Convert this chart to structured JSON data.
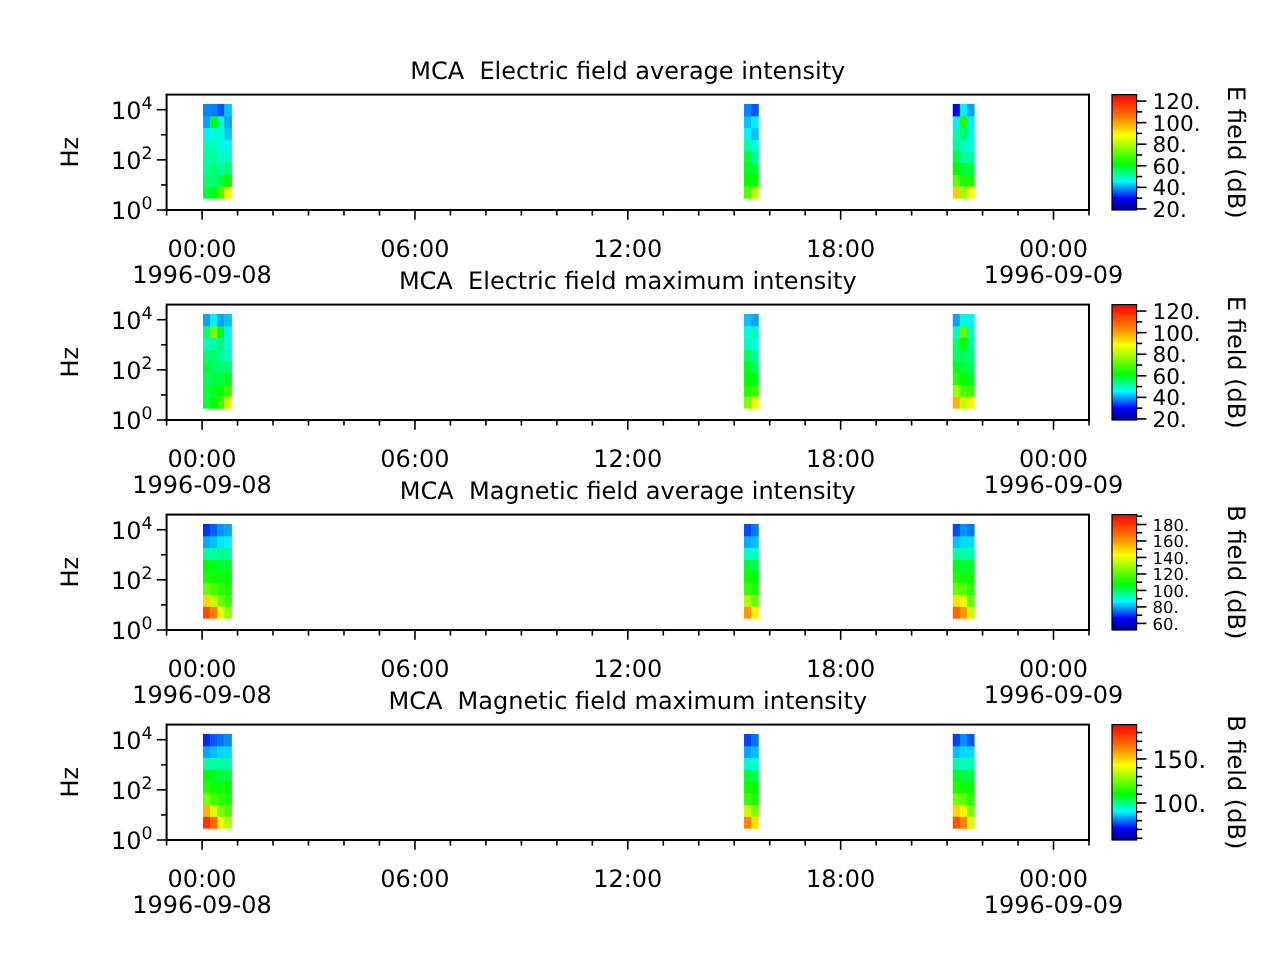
{
  "chart_data": [
    {
      "type": "scatter",
      "title": "MCA  Electric field average intensity",
      "ylabel": "Hz",
      "clabel": "E field (dB)",
      "marker": "square",
      "log": "y",
      "xlim": [
        "1996-09-07T23:00",
        "1996-09-09T01:00"
      ],
      "xticks": [
        {
          "value": "1996-09-07T23:00",
          "label": null
        },
        {
          "value": "1996-09-08T00:00",
          "label": "00:00\n1996-09-08"
        },
        {
          "value": "1996-09-08T01:00",
          "label": null
        },
        {
          "value": "1996-09-08T02:00",
          "label": null
        },
        {
          "value": "1996-09-08T03:00",
          "label": null
        },
        {
          "value": "1996-09-08T04:00",
          "label": null
        },
        {
          "value": "1996-09-08T05:00",
          "label": null
        },
        {
          "value": "1996-09-08T06:00",
          "label": "06:00"
        },
        {
          "value": "1996-09-08T07:00",
          "label": null
        },
        {
          "value": "1996-09-08T08:00",
          "label": null
        },
        {
          "value": "1996-09-08T09:00",
          "label": null
        },
        {
          "value": "1996-09-08T10:00",
          "label": null
        },
        {
          "value": "1996-09-08T11:00",
          "label": null
        },
        {
          "value": "1996-09-08T12:00",
          "label": "12:00"
        },
        {
          "value": "1996-09-08T13:00",
          "label": null
        },
        {
          "value": "1996-09-08T14:00",
          "label": null
        },
        {
          "value": "1996-09-08T15:00",
          "label": null
        },
        {
          "value": "1996-09-08T16:00",
          "label": null
        },
        {
          "value": "1996-09-08T17:00",
          "label": null
        },
        {
          "value": "1996-09-08T18:00",
          "label": "18:00"
        },
        {
          "value": "1996-09-08T19:00",
          "label": null
        },
        {
          "value": "1996-09-08T20:00",
          "label": null
        },
        {
          "value": "1996-09-08T21:00",
          "label": null
        },
        {
          "value": "1996-09-08T22:00",
          "label": null
        },
        {
          "value": "1996-09-08T23:00",
          "label": null
        },
        {
          "value": "1996-09-09T00:00",
          "label": "00:00\n1996-09-09"
        },
        {
          "value": "1996-09-09T01:00",
          "label": null
        }
      ],
      "ylim": [
        1,
        40000
      ],
      "yticks": [
        {
          "value": 1,
          "label": "10$^{0}$"
        },
        {
          "value": 10,
          "label": null
        },
        {
          "value": 100,
          "label": "10$^{2}$"
        },
        {
          "value": 1000,
          "label": null
        },
        {
          "value": 10000,
          "label": "10$^{4}$"
        }
      ],
      "clim": [
        19,
        126
      ],
      "cticks": [
        {
          "value": 20,
          "label": "20."
        },
        {
          "value": 30,
          "label": null
        },
        {
          "value": 40,
          "label": "40."
        },
        {
          "value": 50,
          "label": null
        },
        {
          "value": 60,
          "label": "60."
        },
        {
          "value": 70,
          "label": null
        },
        {
          "value": 80,
          "label": "80."
        },
        {
          "value": 90,
          "label": null
        },
        {
          "value": 100,
          "label": "100."
        },
        {
          "value": 110,
          "label": null
        },
        {
          "value": 120,
          "label": "120."
        }
      ],
      "x": [
        "1996-09-08T00:08",
        "1996-09-08T00:08",
        "1996-09-08T00:08",
        "1996-09-08T00:08",
        "1996-09-08T00:08",
        "1996-09-08T00:08",
        "1996-09-08T00:08",
        "1996-09-08T00:08",
        "1996-09-08T00:20",
        "1996-09-08T00:20",
        "1996-09-08T00:20",
        "1996-09-08T00:20",
        "1996-09-08T00:20",
        "1996-09-08T00:20",
        "1996-09-08T00:20",
        "1996-09-08T00:20",
        "1996-09-08T00:32",
        "1996-09-08T00:32",
        "1996-09-08T00:32",
        "1996-09-08T00:32",
        "1996-09-08T00:32",
        "1996-09-08T00:32",
        "1996-09-08T00:32",
        "1996-09-08T00:32",
        "1996-09-08T00:44",
        "1996-09-08T00:44",
        "1996-09-08T00:44",
        "1996-09-08T00:44",
        "1996-09-08T00:44",
        "1996-09-08T00:44",
        "1996-09-08T00:44",
        "1996-09-08T00:44",
        "1996-09-08T15:23",
        "1996-09-08T15:23",
        "1996-09-08T15:23",
        "1996-09-08T15:23",
        "1996-09-08T15:23",
        "1996-09-08T15:23",
        "1996-09-08T15:23",
        "1996-09-08T15:23",
        "1996-09-08T15:35",
        "1996-09-08T15:35",
        "1996-09-08T15:35",
        "1996-09-08T15:35",
        "1996-09-08T15:35",
        "1996-09-08T15:35",
        "1996-09-08T15:35",
        "1996-09-08T15:35",
        "1996-09-08T21:16",
        "1996-09-08T21:16",
        "1996-09-08T21:16",
        "1996-09-08T21:16",
        "1996-09-08T21:16",
        "1996-09-08T21:16",
        "1996-09-08T21:16",
        "1996-09-08T21:16",
        "1996-09-08T21:28",
        "1996-09-08T21:28",
        "1996-09-08T21:28",
        "1996-09-08T21:28",
        "1996-09-08T21:28",
        "1996-09-08T21:28",
        "1996-09-08T21:28",
        "1996-09-08T21:28",
        "1996-09-08T21:40",
        "1996-09-08T21:40",
        "1996-09-08T21:40",
        "1996-09-08T21:40",
        "1996-09-08T21:40",
        "1996-09-08T21:40",
        "1996-09-08T21:40",
        "1996-09-08T21:40"
      ],
      "values": [
        5,
        15,
        44,
        130,
        380,
        1100,
        3300,
        9600,
        5,
        15,
        44,
        130,
        380,
        1100,
        3300,
        9600,
        5,
        15,
        44,
        130,
        380,
        1100,
        3300,
        9600,
        5,
        15,
        44,
        130,
        380,
        1100,
        3300,
        9600,
        5,
        15,
        44,
        130,
        380,
        1100,
        3300,
        9600,
        5,
        15,
        44,
        130,
        380,
        1100,
        3300,
        9600,
        5,
        15,
        44,
        130,
        380,
        1100,
        3300,
        9600,
        5,
        15,
        44,
        130,
        380,
        1100,
        3300,
        9600,
        5,
        15,
        44,
        130,
        380,
        1100,
        3300,
        9600
      ],
      "cvalues": [
        58,
        55,
        52,
        52,
        50,
        45,
        40,
        38,
        62,
        55,
        55,
        52,
        50,
        48,
        60,
        38,
        70,
        58,
        52,
        50,
        48,
        48,
        50,
        35,
        88,
        62,
        55,
        50,
        45,
        42,
        40,
        42,
        70,
        62,
        60,
        58,
        52,
        45,
        42,
        38,
        82,
        62,
        58,
        52,
        48,
        42,
        45,
        35,
        95,
        72,
        62,
        58,
        52,
        50,
        45,
        30,
        78,
        65,
        58,
        52,
        50,
        55,
        65,
        45,
        88,
        65,
        58,
        52,
        48,
        48,
        45,
        40
      ]
    },
    {
      "type": "scatter",
      "title": "MCA  Electric field maximum intensity",
      "ylabel": "Hz",
      "clabel": "E field (dB)",
      "marker": "square",
      "log": "y",
      "xlim": [
        "1996-09-07T23:00",
        "1996-09-09T01:00"
      ],
      "xticks": [
        {
          "value": "1996-09-07T23:00",
          "label": null
        },
        {
          "value": "1996-09-08T00:00",
          "label": "00:00\n1996-09-08"
        },
        {
          "value": "1996-09-08T01:00",
          "label": null
        },
        {
          "value": "1996-09-08T02:00",
          "label": null
        },
        {
          "value": "1996-09-08T03:00",
          "label": null
        },
        {
          "value": "1996-09-08T04:00",
          "label": null
        },
        {
          "value": "1996-09-08T05:00",
          "label": null
        },
        {
          "value": "1996-09-08T06:00",
          "label": "06:00"
        },
        {
          "value": "1996-09-08T07:00",
          "label": null
        },
        {
          "value": "1996-09-08T08:00",
          "label": null
        },
        {
          "value": "1996-09-08T09:00",
          "label": null
        },
        {
          "value": "1996-09-08T10:00",
          "label": null
        },
        {
          "value": "1996-09-08T11:00",
          "label": null
        },
        {
          "value": "1996-09-08T12:00",
          "label": "12:00"
        },
        {
          "value": "1996-09-08T13:00",
          "label": null
        },
        {
          "value": "1996-09-08T14:00",
          "label": null
        },
        {
          "value": "1996-09-08T15:00",
          "label": null
        },
        {
          "value": "1996-09-08T16:00",
          "label": null
        },
        {
          "value": "1996-09-08T17:00",
          "label": null
        },
        {
          "value": "1996-09-08T18:00",
          "label": "18:00"
        },
        {
          "value": "1996-09-08T19:00",
          "label": null
        },
        {
          "value": "1996-09-08T20:00",
          "label": null
        },
        {
          "value": "1996-09-08T21:00",
          "label": null
        },
        {
          "value": "1996-09-08T22:00",
          "label": null
        },
        {
          "value": "1996-09-08T23:00",
          "label": null
        },
        {
          "value": "1996-09-09T00:00",
          "label": "00:00\n1996-09-09"
        },
        {
          "value": "1996-09-09T01:00",
          "label": null
        }
      ],
      "ylim": [
        1,
        40000
      ],
      "yticks": [
        {
          "value": 1,
          "label": "10$^{0}$"
        },
        {
          "value": 10,
          "label": null
        },
        {
          "value": 100,
          "label": "10$^{2}$"
        },
        {
          "value": 1000,
          "label": null
        },
        {
          "value": 10000,
          "label": "10$^{4}$"
        }
      ],
      "clim": [
        19,
        126
      ],
      "cticks": [
        {
          "value": 20,
          "label": "20."
        },
        {
          "value": 30,
          "label": null
        },
        {
          "value": 40,
          "label": "40."
        },
        {
          "value": 50,
          "label": null
        },
        {
          "value": 60,
          "label": "60."
        },
        {
          "value": 70,
          "label": null
        },
        {
          "value": 80,
          "label": "80."
        },
        {
          "value": 90,
          "label": null
        },
        {
          "value": 100,
          "label": "100."
        },
        {
          "value": 110,
          "label": null
        },
        {
          "value": 120,
          "label": "120."
        }
      ],
      "x": [
        "1996-09-08T00:08",
        "1996-09-08T00:08",
        "1996-09-08T00:08",
        "1996-09-08T00:08",
        "1996-09-08T00:08",
        "1996-09-08T00:08",
        "1996-09-08T00:08",
        "1996-09-08T00:08",
        "1996-09-08T00:20",
        "1996-09-08T00:20",
        "1996-09-08T00:20",
        "1996-09-08T00:20",
        "1996-09-08T00:20",
        "1996-09-08T00:20",
        "1996-09-08T00:20",
        "1996-09-08T00:20",
        "1996-09-08T00:32",
        "1996-09-08T00:32",
        "1996-09-08T00:32",
        "1996-09-08T00:32",
        "1996-09-08T00:32",
        "1996-09-08T00:32",
        "1996-09-08T00:32",
        "1996-09-08T00:32",
        "1996-09-08T00:44",
        "1996-09-08T00:44",
        "1996-09-08T00:44",
        "1996-09-08T00:44",
        "1996-09-08T00:44",
        "1996-09-08T00:44",
        "1996-09-08T00:44",
        "1996-09-08T00:44",
        "1996-09-08T15:23",
        "1996-09-08T15:23",
        "1996-09-08T15:23",
        "1996-09-08T15:23",
        "1996-09-08T15:23",
        "1996-09-08T15:23",
        "1996-09-08T15:23",
        "1996-09-08T15:23",
        "1996-09-08T15:35",
        "1996-09-08T15:35",
        "1996-09-08T15:35",
        "1996-09-08T15:35",
        "1996-09-08T15:35",
        "1996-09-08T15:35",
        "1996-09-08T15:35",
        "1996-09-08T15:35",
        "1996-09-08T21:16",
        "1996-09-08T21:16",
        "1996-09-08T21:16",
        "1996-09-08T21:16",
        "1996-09-08T21:16",
        "1996-09-08T21:16",
        "1996-09-08T21:16",
        "1996-09-08T21:16",
        "1996-09-08T21:28",
        "1996-09-08T21:28",
        "1996-09-08T21:28",
        "1996-09-08T21:28",
        "1996-09-08T21:28",
        "1996-09-08T21:28",
        "1996-09-08T21:28",
        "1996-09-08T21:28",
        "1996-09-08T21:40",
        "1996-09-08T21:40",
        "1996-09-08T21:40",
        "1996-09-08T21:40",
        "1996-09-08T21:40",
        "1996-09-08T21:40",
        "1996-09-08T21:40",
        "1996-09-08T21:40"
      ],
      "values": [
        5,
        15,
        44,
        130,
        380,
        1100,
        3300,
        9600,
        5,
        15,
        44,
        130,
        380,
        1100,
        3300,
        9600,
        5,
        15,
        44,
        130,
        380,
        1100,
        3300,
        9600,
        5,
        15,
        44,
        130,
        380,
        1100,
        3300,
        9600,
        5,
        15,
        44,
        130,
        380,
        1100,
        3300,
        9600,
        5,
        15,
        44,
        130,
        380,
        1100,
        3300,
        9600,
        5,
        15,
        44,
        130,
        380,
        1100,
        3300,
        9600,
        5,
        15,
        44,
        130,
        380,
        1100,
        3300,
        9600,
        5,
        15,
        44,
        130,
        380,
        1100,
        3300,
        9600
      ],
      "cvalues": [
        58,
        58,
        56,
        58,
        55,
        50,
        55,
        40,
        62,
        60,
        58,
        56,
        55,
        52,
        75,
        45,
        68,
        62,
        58,
        55,
        52,
        55,
        60,
        40,
        85,
        68,
        60,
        55,
        50,
        48,
        45,
        42,
        75,
        65,
        62,
        60,
        56,
        50,
        48,
        42,
        88,
        68,
        60,
        56,
        52,
        48,
        50,
        40,
        98,
        78,
        66,
        60,
        56,
        55,
        50,
        40,
        82,
        70,
        62,
        58,
        56,
        62,
        72,
        48,
        90,
        68,
        60,
        56,
        54,
        52,
        50,
        45
      ]
    },
    {
      "type": "scatter",
      "title": "MCA  Magnetic field average intensity",
      "ylabel": "Hz",
      "clabel": "B field (dB)",
      "marker": "square",
      "log": "y",
      "xlim": [
        "1996-09-07T23:00",
        "1996-09-09T01:00"
      ],
      "xticks": [
        {
          "value": "1996-09-07T23:00",
          "label": null
        },
        {
          "value": "1996-09-08T00:00",
          "label": "00:00\n1996-09-08"
        },
        {
          "value": "1996-09-08T01:00",
          "label": null
        },
        {
          "value": "1996-09-08T02:00",
          "label": null
        },
        {
          "value": "1996-09-08T03:00",
          "label": null
        },
        {
          "value": "1996-09-08T04:00",
          "label": null
        },
        {
          "value": "1996-09-08T05:00",
          "label": null
        },
        {
          "value": "1996-09-08T06:00",
          "label": "06:00"
        },
        {
          "value": "1996-09-08T07:00",
          "label": null
        },
        {
          "value": "1996-09-08T08:00",
          "label": null
        },
        {
          "value": "1996-09-08T09:00",
          "label": null
        },
        {
          "value": "1996-09-08T10:00",
          "label": null
        },
        {
          "value": "1996-09-08T11:00",
          "label": null
        },
        {
          "value": "1996-09-08T12:00",
          "label": "12:00"
        },
        {
          "value": "1996-09-08T13:00",
          "label": null
        },
        {
          "value": "1996-09-08T14:00",
          "label": null
        },
        {
          "value": "1996-09-08T15:00",
          "label": null
        },
        {
          "value": "1996-09-08T16:00",
          "label": null
        },
        {
          "value": "1996-09-08T17:00",
          "label": null
        },
        {
          "value": "1996-09-08T18:00",
          "label": "18:00"
        },
        {
          "value": "1996-09-08T19:00",
          "label": null
        },
        {
          "value": "1996-09-08T20:00",
          "label": null
        },
        {
          "value": "1996-09-08T21:00",
          "label": null
        },
        {
          "value": "1996-09-08T22:00",
          "label": null
        },
        {
          "value": "1996-09-08T23:00",
          "label": null
        },
        {
          "value": "1996-09-09T00:00",
          "label": "00:00\n1996-09-09"
        },
        {
          "value": "1996-09-09T01:00",
          "label": null
        }
      ],
      "ylim": [
        1,
        40000
      ],
      "yticks": [
        {
          "value": 1,
          "label": "10$^{0}$"
        },
        {
          "value": 10,
          "label": null
        },
        {
          "value": 100,
          "label": "10$^{2}$"
        },
        {
          "value": 1000,
          "label": null
        },
        {
          "value": 10000,
          "label": "10$^{4}$"
        }
      ],
      "clim": [
        52,
        192
      ],
      "cticks": [
        {
          "value": 60,
          "label": "60."
        },
        {
          "value": 70,
          "label": null
        },
        {
          "value": 80,
          "label": "80."
        },
        {
          "value": 90,
          "label": null
        },
        {
          "value": 100,
          "label": "100."
        },
        {
          "value": 110,
          "label": null
        },
        {
          "value": 120,
          "label": "120."
        },
        {
          "value": 130,
          "label": null
        },
        {
          "value": 140,
          "label": "140."
        },
        {
          "value": 150,
          "label": null
        },
        {
          "value": 160,
          "label": "160."
        },
        {
          "value": 170,
          "label": null
        },
        {
          "value": 180,
          "label": "180."
        },
        {
          "value": 190,
          "label": null
        }
      ],
      "x": [
        "1996-09-08T00:08",
        "1996-09-08T00:08",
        "1996-09-08T00:08",
        "1996-09-08T00:08",
        "1996-09-08T00:08",
        "1996-09-08T00:08",
        "1996-09-08T00:08",
        "1996-09-08T00:08",
        "1996-09-08T00:20",
        "1996-09-08T00:20",
        "1996-09-08T00:20",
        "1996-09-08T00:20",
        "1996-09-08T00:20",
        "1996-09-08T00:20",
        "1996-09-08T00:20",
        "1996-09-08T00:20",
        "1996-09-08T00:32",
        "1996-09-08T00:32",
        "1996-09-08T00:32",
        "1996-09-08T00:32",
        "1996-09-08T00:32",
        "1996-09-08T00:32",
        "1996-09-08T00:32",
        "1996-09-08T00:32",
        "1996-09-08T00:44",
        "1996-09-08T00:44",
        "1996-09-08T00:44",
        "1996-09-08T00:44",
        "1996-09-08T00:44",
        "1996-09-08T00:44",
        "1996-09-08T00:44",
        "1996-09-08T00:44",
        "1996-09-08T15:23",
        "1996-09-08T15:23",
        "1996-09-08T15:23",
        "1996-09-08T15:23",
        "1996-09-08T15:23",
        "1996-09-08T15:23",
        "1996-09-08T15:23",
        "1996-09-08T15:23",
        "1996-09-08T15:35",
        "1996-09-08T15:35",
        "1996-09-08T15:35",
        "1996-09-08T15:35",
        "1996-09-08T15:35",
        "1996-09-08T15:35",
        "1996-09-08T15:35",
        "1996-09-08T15:35",
        "1996-09-08T21:16",
        "1996-09-08T21:16",
        "1996-09-08T21:16",
        "1996-09-08T21:16",
        "1996-09-08T21:16",
        "1996-09-08T21:16",
        "1996-09-08T21:16",
        "1996-09-08T21:16",
        "1996-09-08T21:28",
        "1996-09-08T21:28",
        "1996-09-08T21:28",
        "1996-09-08T21:28",
        "1996-09-08T21:28",
        "1996-09-08T21:28",
        "1996-09-08T21:28",
        "1996-09-08T21:28",
        "1996-09-08T21:40",
        "1996-09-08T21:40",
        "1996-09-08T21:40",
        "1996-09-08T21:40",
        "1996-09-08T21:40",
        "1996-09-08T21:40",
        "1996-09-08T21:40",
        "1996-09-08T21:40"
      ],
      "values": [
        5,
        15,
        44,
        130,
        380,
        1100,
        3300,
        9600,
        5,
        15,
        44,
        130,
        380,
        1100,
        3300,
        9600,
        5,
        15,
        44,
        130,
        380,
        1100,
        3300,
        9600,
        5,
        15,
        44,
        130,
        380,
        1100,
        3300,
        9600,
        5,
        15,
        44,
        130,
        380,
        1100,
        3300,
        9600,
        5,
        15,
        44,
        130,
        380,
        1100,
        3300,
        9600,
        5,
        15,
        44,
        130,
        380,
        1100,
        3300,
        9600,
        5,
        15,
        44,
        130,
        380,
        1100,
        3300,
        9600,
        5,
        15,
        44,
        130,
        380,
        1100,
        3300,
        9600
      ],
      "cvalues": [
        175,
        150,
        122,
        112,
        108,
        95,
        80,
        70,
        165,
        135,
        118,
        110,
        106,
        95,
        82,
        74,
        140,
        122,
        114,
        110,
        104,
        96,
        85,
        78,
        128,
        116,
        112,
        108,
        104,
        96,
        86,
        80,
        160,
        132,
        115,
        110,
        104,
        92,
        80,
        72,
        145,
        122,
        112,
        108,
        102,
        92,
        82,
        76,
        170,
        148,
        122,
        112,
        106,
        95,
        82,
        72,
        160,
        140,
        120,
        110,
        104,
        94,
        84,
        78,
        135,
        122,
        114,
        110,
        104,
        94,
        84,
        76
      ]
    },
    {
      "type": "scatter",
      "title": "MCA  Magnetic field maximum intensity",
      "ylabel": "Hz",
      "clabel": "B field (dB)",
      "marker": "square",
      "log": "y",
      "xlim": [
        "1996-09-07T23:00",
        "1996-09-09T01:00"
      ],
      "xticks": [
        {
          "value": "1996-09-07T23:00",
          "label": null
        },
        {
          "value": "1996-09-08T00:00",
          "label": "00:00\n1996-09-08"
        },
        {
          "value": "1996-09-08T01:00",
          "label": null
        },
        {
          "value": "1996-09-08T02:00",
          "label": null
        },
        {
          "value": "1996-09-08T03:00",
          "label": null
        },
        {
          "value": "1996-09-08T04:00",
          "label": null
        },
        {
          "value": "1996-09-08T05:00",
          "label": null
        },
        {
          "value": "1996-09-08T06:00",
          "label": "06:00"
        },
        {
          "value": "1996-09-08T07:00",
          "label": null
        },
        {
          "value": "1996-09-08T08:00",
          "label": null
        },
        {
          "value": "1996-09-08T09:00",
          "label": null
        },
        {
          "value": "1996-09-08T10:00",
          "label": null
        },
        {
          "value": "1996-09-08T11:00",
          "label": null
        },
        {
          "value": "1996-09-08T12:00",
          "label": "12:00"
        },
        {
          "value": "1996-09-08T13:00",
          "label": null
        },
        {
          "value": "1996-09-08T14:00",
          "label": null
        },
        {
          "value": "1996-09-08T15:00",
          "label": null
        },
        {
          "value": "1996-09-08T16:00",
          "label": null
        },
        {
          "value": "1996-09-08T17:00",
          "label": null
        },
        {
          "value": "1996-09-08T18:00",
          "label": "18:00"
        },
        {
          "value": "1996-09-08T19:00",
          "label": null
        },
        {
          "value": "1996-09-08T20:00",
          "label": null
        },
        {
          "value": "1996-09-08T21:00",
          "label": null
        },
        {
          "value": "1996-09-08T22:00",
          "label": null
        },
        {
          "value": "1996-09-08T23:00",
          "label": null
        },
        {
          "value": "1996-09-09T00:00",
          "label": "00:00\n1996-09-09"
        },
        {
          "value": "1996-09-09T01:00",
          "label": null
        }
      ],
      "ylim": [
        1,
        40000
      ],
      "yticks": [
        {
          "value": 1,
          "label": "10$^{0}$"
        },
        {
          "value": 10,
          "label": null
        },
        {
          "value": 100,
          "label": "10$^{2}$"
        },
        {
          "value": 1000,
          "label": null
        },
        {
          "value": 10000,
          "label": "10$^{4}$"
        }
      ],
      "clim": [
        58,
        189
      ],
      "cticks": [
        {
          "value": 60,
          "label": null
        },
        {
          "value": 70,
          "label": null
        },
        {
          "value": 80,
          "label": null
        },
        {
          "value": 90,
          "label": null
        },
        {
          "value": 100,
          "label": "100."
        },
        {
          "value": 110,
          "label": null
        },
        {
          "value": 120,
          "label": null
        },
        {
          "value": 130,
          "label": null
        },
        {
          "value": 140,
          "label": null
        },
        {
          "value": 150,
          "label": "150."
        },
        {
          "value": 160,
          "label": null
        },
        {
          "value": 170,
          "label": null
        },
        {
          "value": 180,
          "label": null
        }
      ],
      "x": [
        "1996-09-08T00:08",
        "1996-09-08T00:08",
        "1996-09-08T00:08",
        "1996-09-08T00:08",
        "1996-09-08T00:08",
        "1996-09-08T00:08",
        "1996-09-08T00:08",
        "1996-09-08T00:08",
        "1996-09-08T00:20",
        "1996-09-08T00:20",
        "1996-09-08T00:20",
        "1996-09-08T00:20",
        "1996-09-08T00:20",
        "1996-09-08T00:20",
        "1996-09-08T00:20",
        "1996-09-08T00:20",
        "1996-09-08T00:32",
        "1996-09-08T00:32",
        "1996-09-08T00:32",
        "1996-09-08T00:32",
        "1996-09-08T00:32",
        "1996-09-08T00:32",
        "1996-09-08T00:32",
        "1996-09-08T00:32",
        "1996-09-08T00:44",
        "1996-09-08T00:44",
        "1996-09-08T00:44",
        "1996-09-08T00:44",
        "1996-09-08T00:44",
        "1996-09-08T00:44",
        "1996-09-08T00:44",
        "1996-09-08T00:44",
        "1996-09-08T15:23",
        "1996-09-08T15:23",
        "1996-09-08T15:23",
        "1996-09-08T15:23",
        "1996-09-08T15:23",
        "1996-09-08T15:23",
        "1996-09-08T15:23",
        "1996-09-08T15:23",
        "1996-09-08T15:35",
        "1996-09-08T15:35",
        "1996-09-08T15:35",
        "1996-09-08T15:35",
        "1996-09-08T15:35",
        "1996-09-08T15:35",
        "1996-09-08T15:35",
        "1996-09-08T15:35",
        "1996-09-08T21:16",
        "1996-09-08T21:16",
        "1996-09-08T21:16",
        "1996-09-08T21:16",
        "1996-09-08T21:16",
        "1996-09-08T21:16",
        "1996-09-08T21:16",
        "1996-09-08T21:16",
        "1996-09-08T21:28",
        "1996-09-08T21:28",
        "1996-09-08T21:28",
        "1996-09-08T21:28",
        "1996-09-08T21:28",
        "1996-09-08T21:28",
        "1996-09-08T21:28",
        "1996-09-08T21:28",
        "1996-09-08T21:40",
        "1996-09-08T21:40",
        "1996-09-08T21:40",
        "1996-09-08T21:40",
        "1996-09-08T21:40",
        "1996-09-08T21:40",
        "1996-09-08T21:40",
        "1996-09-08T21:40"
      ],
      "values": [
        5,
        15,
        44,
        130,
        380,
        1100,
        3300,
        9600,
        5,
        15,
        44,
        130,
        380,
        1100,
        3300,
        9600,
        5,
        15,
        44,
        130,
        380,
        1100,
        3300,
        9600,
        5,
        15,
        44,
        130,
        380,
        1100,
        3300,
        9600,
        5,
        15,
        44,
        130,
        380,
        1100,
        3300,
        9600,
        5,
        15,
        44,
        130,
        380,
        1100,
        3300,
        9600,
        5,
        15,
        44,
        130,
        380,
        1100,
        3300,
        9600,
        5,
        15,
        44,
        130,
        380,
        1100,
        3300,
        9600,
        5,
        15,
        44,
        130,
        380,
        1100,
        3300,
        9600
      ],
      "cvalues": [
        178,
        155,
        126,
        114,
        110,
        98,
        84,
        74,
        168,
        140,
        120,
        112,
        108,
        98,
        86,
        78,
        145,
        126,
        116,
        112,
        106,
        98,
        88,
        80,
        132,
        120,
        114,
        110,
        106,
        98,
        88,
        82,
        162,
        136,
        118,
        112,
        106,
        95,
        84,
        76,
        148,
        126,
        114,
        110,
        104,
        95,
        86,
        80,
        172,
        150,
        126,
        114,
        108,
        98,
        86,
        76,
        162,
        144,
        122,
        112,
        106,
        96,
        88,
        82,
        138,
        126,
        116,
        112,
        106,
        96,
        88,
        78
      ]
    }
  ]
}
